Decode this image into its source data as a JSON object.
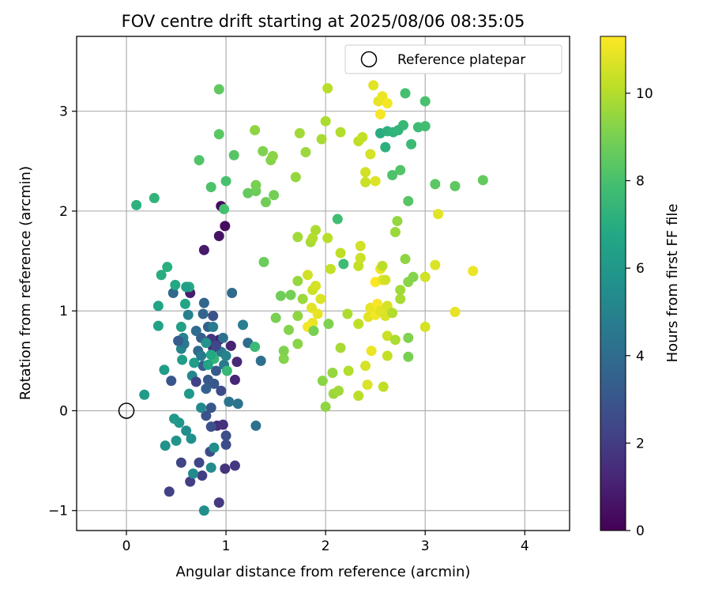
{
  "chart_data": {
    "type": "scatter",
    "title": "FOV centre drift starting at 2025/08/06 08:35:05",
    "xlabel": "Angular distance from reference (arcmin)",
    "ylabel": "Rotation from reference (arcmin)",
    "xlim": [
      -0.5,
      4.45
    ],
    "ylim": [
      -1.2,
      3.75
    ],
    "xticks": [
      0,
      1,
      2,
      3,
      4
    ],
    "yticks": [
      -1,
      0,
      1,
      2,
      3
    ],
    "grid": true,
    "legend": {
      "position": "top-right",
      "entries": [
        "Reference platepar"
      ]
    },
    "reference_point": {
      "x": 0,
      "y": 0,
      "label": "Reference platepar"
    },
    "colorbar": {
      "label": "Hours from first FF file",
      "colormap": "viridis",
      "range": [
        0,
        11.3
      ],
      "ticks": [
        0,
        2,
        4,
        6,
        8,
        10
      ]
    },
    "points": [
      {
        "x": 0.95,
        "y": 2.05,
        "h": 0.3
      },
      {
        "x": 0.99,
        "y": 1.85,
        "h": 0.4
      },
      {
        "x": 0.93,
        "y": 1.75,
        "h": 0.6
      },
      {
        "x": 0.78,
        "y": 1.61,
        "h": 0.8
      },
      {
        "x": 0.64,
        "y": 1.18,
        "h": 0.9
      },
      {
        "x": 0.93,
        "y": 0.71,
        "h": 1.0
      },
      {
        "x": 1.05,
        "y": 0.65,
        "h": 1.1
      },
      {
        "x": 1.09,
        "y": 0.31,
        "h": 1.2
      },
      {
        "x": 1.11,
        "y": 0.49,
        "h": 1.3
      },
      {
        "x": 0.87,
        "y": 0.63,
        "h": 1.4
      },
      {
        "x": 0.91,
        "y": -0.15,
        "h": 1.5
      },
      {
        "x": 0.97,
        "y": -0.14,
        "h": 1.6
      },
      {
        "x": 0.99,
        "y": -0.58,
        "h": 1.7
      },
      {
        "x": 1.09,
        "y": -0.55,
        "h": 1.8
      },
      {
        "x": 0.93,
        "y": -0.92,
        "h": 1.9
      },
      {
        "x": 0.76,
        "y": -0.65,
        "h": 2.0
      },
      {
        "x": 0.64,
        "y": -0.71,
        "h": 2.1
      },
      {
        "x": 0.43,
        "y": -0.81,
        "h": 2.2
      },
      {
        "x": 0.55,
        "y": -0.52,
        "h": 2.3
      },
      {
        "x": 0.73,
        "y": -0.52,
        "h": 2.4
      },
      {
        "x": 0.84,
        "y": -0.41,
        "h": 2.5
      },
      {
        "x": 1.0,
        "y": -0.34,
        "h": 2.6
      },
      {
        "x": 1.0,
        "y": -0.25,
        "h": 2.7
      },
      {
        "x": 0.85,
        "y": -0.16,
        "h": 2.8
      },
      {
        "x": 0.8,
        "y": -0.05,
        "h": 2.9
      },
      {
        "x": 0.85,
        "y": 0.03,
        "h": 3.0
      },
      {
        "x": 0.88,
        "y": 0.27,
        "h": 3.1
      },
      {
        "x": 0.82,
        "y": 0.31,
        "h": 3.2
      },
      {
        "x": 0.77,
        "y": 0.45,
        "h": 3.3
      },
      {
        "x": 0.75,
        "y": 0.73,
        "h": 3.4
      },
      {
        "x": 0.82,
        "y": 0.84,
        "h": 3.5
      },
      {
        "x": 0.77,
        "y": 0.97,
        "h": 3.6
      },
      {
        "x": 0.78,
        "y": 1.08,
        "h": 3.7
      },
      {
        "x": 0.47,
        "y": 1.18,
        "h": 3.8
      },
      {
        "x": 1.06,
        "y": 1.18,
        "h": 3.9
      },
      {
        "x": 1.22,
        "y": 0.68,
        "h": 4.0
      },
      {
        "x": 1.35,
        "y": 0.5,
        "h": 4.1
      },
      {
        "x": 1.3,
        "y": -0.15,
        "h": 4.2
      },
      {
        "x": 1.12,
        "y": 0.07,
        "h": 4.3
      },
      {
        "x": 1.03,
        "y": 0.09,
        "h": 4.4
      },
      {
        "x": 0.98,
        "y": 0.46,
        "h": 4.5
      },
      {
        "x": 0.95,
        "y": 0.59,
        "h": 4.6
      },
      {
        "x": 0.87,
        "y": 0.84,
        "h": 4.7
      },
      {
        "x": 1.17,
        "y": 0.86,
        "h": 4.8
      },
      {
        "x": 0.62,
        "y": 0.96,
        "h": 4.9
      },
      {
        "x": 0.57,
        "y": 0.73,
        "h": 5.0
      },
      {
        "x": 0.55,
        "y": 0.62,
        "h": 5.1
      },
      {
        "x": 0.66,
        "y": 0.35,
        "h": 5.2
      },
      {
        "x": 0.75,
        "y": 0.03,
        "h": 5.3
      },
      {
        "x": 0.67,
        "y": -0.63,
        "h": 5.4
      },
      {
        "x": 0.88,
        "y": -0.37,
        "h": 5.5
      },
      {
        "x": 0.65,
        "y": -0.28,
        "h": 5.6
      },
      {
        "x": 0.39,
        "y": -0.35,
        "h": 5.7
      },
      {
        "x": 0.5,
        "y": -0.3,
        "h": 5.8
      },
      {
        "x": 0.53,
        "y": -0.12,
        "h": 5.9
      },
      {
        "x": 0.48,
        "y": -0.08,
        "h": 6.0
      },
      {
        "x": 0.18,
        "y": 0.16,
        "h": 6.1
      },
      {
        "x": 0.38,
        "y": 0.41,
        "h": 6.2
      },
      {
        "x": 0.56,
        "y": 0.51,
        "h": 6.3
      },
      {
        "x": 0.55,
        "y": 0.84,
        "h": 6.4
      },
      {
        "x": 0.32,
        "y": 0.85,
        "h": 6.5
      },
      {
        "x": 0.32,
        "y": 1.05,
        "h": 6.6
      },
      {
        "x": 0.59,
        "y": 1.07,
        "h": 6.7
      },
      {
        "x": 0.49,
        "y": 1.26,
        "h": 6.8
      },
      {
        "x": 0.63,
        "y": 1.24,
        "h": 6.9
      },
      {
        "x": 0.35,
        "y": 1.36,
        "h": 7.0
      },
      {
        "x": 0.41,
        "y": 1.44,
        "h": 7.1
      },
      {
        "x": 0.1,
        "y": 2.06,
        "h": 7.2
      },
      {
        "x": 0.28,
        "y": 2.13,
        "h": 7.3
      },
      {
        "x": 0.88,
        "y": 0.52,
        "h": 7.4
      },
      {
        "x": 1.01,
        "y": 0.4,
        "h": 7.5
      },
      {
        "x": 1.29,
        "y": 0.64,
        "h": 7.6
      },
      {
        "x": 2.18,
        "y": 1.47,
        "h": 7.7
      },
      {
        "x": 2.12,
        "y": 1.92,
        "h": 7.8
      },
      {
        "x": 0.98,
        "y": 2.02,
        "h": 7.9
      },
      {
        "x": 1.0,
        "y": 2.3,
        "h": 8.0
      },
      {
        "x": 0.85,
        "y": 2.24,
        "h": 8.1
      },
      {
        "x": 0.73,
        "y": 2.51,
        "h": 8.2
      },
      {
        "x": 1.08,
        "y": 2.56,
        "h": 8.3
      },
      {
        "x": 0.93,
        "y": 2.77,
        "h": 8.4
      },
      {
        "x": 0.93,
        "y": 3.22,
        "h": 8.5
      },
      {
        "x": 1.22,
        "y": 2.18,
        "h": 8.6
      },
      {
        "x": 1.3,
        "y": 2.2,
        "h": 8.7
      },
      {
        "x": 1.4,
        "y": 2.09,
        "h": 8.8
      },
      {
        "x": 1.48,
        "y": 2.16,
        "h": 8.9
      },
      {
        "x": 1.3,
        "y": 2.26,
        "h": 9.0
      },
      {
        "x": 1.37,
        "y": 2.6,
        "h": 9.1
      },
      {
        "x": 1.45,
        "y": 2.51,
        "h": 9.2
      },
      {
        "x": 1.47,
        "y": 2.55,
        "h": 9.3
      },
      {
        "x": 1.29,
        "y": 2.81,
        "h": 9.4
      },
      {
        "x": 1.7,
        "y": 2.34,
        "h": 9.5
      },
      {
        "x": 1.8,
        "y": 2.59,
        "h": 9.6
      },
      {
        "x": 1.74,
        "y": 2.78,
        "h": 9.7
      },
      {
        "x": 1.96,
        "y": 2.72,
        "h": 9.8
      },
      {
        "x": 2.0,
        "y": 2.9,
        "h": 9.9
      },
      {
        "x": 2.15,
        "y": 2.79,
        "h": 10.0
      },
      {
        "x": 2.02,
        "y": 3.23,
        "h": 10.1
      },
      {
        "x": 2.33,
        "y": 2.7,
        "h": 10.2
      },
      {
        "x": 2.37,
        "y": 2.74,
        "h": 10.3
      },
      {
        "x": 2.4,
        "y": 2.29,
        "h": 10.4
      },
      {
        "x": 2.4,
        "y": 2.39,
        "h": 10.5
      },
      {
        "x": 2.45,
        "y": 2.57,
        "h": 10.6
      },
      {
        "x": 2.5,
        "y": 2.3,
        "h": 10.7
      },
      {
        "x": 2.48,
        "y": 3.26,
        "h": 10.8
      },
      {
        "x": 2.53,
        "y": 3.1,
        "h": 10.9
      },
      {
        "x": 2.57,
        "y": 3.15,
        "h": 11.0
      },
      {
        "x": 2.62,
        "y": 3.08,
        "h": 11.1
      },
      {
        "x": 2.55,
        "y": 2.97,
        "h": 11.2
      },
      {
        "x": 2.55,
        "y": 2.78,
        "h": 7.0
      },
      {
        "x": 2.6,
        "y": 2.64,
        "h": 7.1
      },
      {
        "x": 2.62,
        "y": 2.8,
        "h": 7.2
      },
      {
        "x": 2.68,
        "y": 2.79,
        "h": 7.3
      },
      {
        "x": 2.73,
        "y": 2.81,
        "h": 7.4
      },
      {
        "x": 2.78,
        "y": 2.86,
        "h": 7.5
      },
      {
        "x": 2.86,
        "y": 2.67,
        "h": 7.6
      },
      {
        "x": 2.93,
        "y": 2.84,
        "h": 7.7
      },
      {
        "x": 3.0,
        "y": 2.85,
        "h": 7.8
      },
      {
        "x": 2.8,
        "y": 3.18,
        "h": 7.9
      },
      {
        "x": 3.0,
        "y": 3.1,
        "h": 8.0
      },
      {
        "x": 2.67,
        "y": 2.36,
        "h": 8.1
      },
      {
        "x": 2.75,
        "y": 2.41,
        "h": 8.2
      },
      {
        "x": 2.83,
        "y": 2.1,
        "h": 8.3
      },
      {
        "x": 3.1,
        "y": 2.27,
        "h": 8.4
      },
      {
        "x": 3.3,
        "y": 2.25,
        "h": 8.5
      },
      {
        "x": 3.58,
        "y": 2.31,
        "h": 8.6
      },
      {
        "x": 1.38,
        "y": 1.49,
        "h": 8.7
      },
      {
        "x": 1.55,
        "y": 1.15,
        "h": 8.8
      },
      {
        "x": 1.65,
        "y": 1.16,
        "h": 8.9
      },
      {
        "x": 1.5,
        "y": 0.93,
        "h": 9.0
      },
      {
        "x": 1.58,
        "y": 0.6,
        "h": 9.1
      },
      {
        "x": 1.63,
        "y": 0.81,
        "h": 9.2
      },
      {
        "x": 1.72,
        "y": 0.67,
        "h": 9.3
      },
      {
        "x": 1.72,
        "y": 0.95,
        "h": 9.4
      },
      {
        "x": 1.72,
        "y": 1.3,
        "h": 9.5
      },
      {
        "x": 1.77,
        "y": 1.12,
        "h": 9.6
      },
      {
        "x": 1.72,
        "y": 1.74,
        "h": 9.7
      },
      {
        "x": 1.85,
        "y": 1.69,
        "h": 9.8
      },
      {
        "x": 1.9,
        "y": 1.81,
        "h": 9.9
      },
      {
        "x": 1.87,
        "y": 1.73,
        "h": 10.0
      },
      {
        "x": 2.02,
        "y": 1.73,
        "h": 10.1
      },
      {
        "x": 2.15,
        "y": 1.58,
        "h": 10.2
      },
      {
        "x": 2.05,
        "y": 1.42,
        "h": 10.3
      },
      {
        "x": 1.87,
        "y": 1.21,
        "h": 10.4
      },
      {
        "x": 1.82,
        "y": 1.36,
        "h": 10.5
      },
      {
        "x": 1.9,
        "y": 1.25,
        "h": 10.6
      },
      {
        "x": 1.95,
        "y": 1.12,
        "h": 10.7
      },
      {
        "x": 1.86,
        "y": 1.03,
        "h": 10.8
      },
      {
        "x": 1.92,
        "y": 0.97,
        "h": 10.9
      },
      {
        "x": 1.87,
        "y": 0.88,
        "h": 11.0
      },
      {
        "x": 1.82,
        "y": 0.84,
        "h": 11.1
      },
      {
        "x": 1.88,
        "y": 0.8,
        "h": 9.0
      },
      {
        "x": 2.03,
        "y": 0.87,
        "h": 9.1
      },
      {
        "x": 1.58,
        "y": 0.52,
        "h": 9.2
      },
      {
        "x": 1.97,
        "y": 0.3,
        "h": 9.3
      },
      {
        "x": 2.0,
        "y": 0.04,
        "h": 9.4
      },
      {
        "x": 2.07,
        "y": 0.38,
        "h": 9.5
      },
      {
        "x": 2.08,
        "y": 0.17,
        "h": 9.6
      },
      {
        "x": 2.13,
        "y": 0.2,
        "h": 9.7
      },
      {
        "x": 2.15,
        "y": 0.63,
        "h": 9.8
      },
      {
        "x": 2.22,
        "y": 0.97,
        "h": 9.9
      },
      {
        "x": 2.23,
        "y": 0.4,
        "h": 10.0
      },
      {
        "x": 2.33,
        "y": 0.15,
        "h": 10.1
      },
      {
        "x": 2.33,
        "y": 0.87,
        "h": 10.2
      },
      {
        "x": 2.33,
        "y": 1.45,
        "h": 10.3
      },
      {
        "x": 2.35,
        "y": 1.53,
        "h": 10.4
      },
      {
        "x": 2.35,
        "y": 1.65,
        "h": 10.5
      },
      {
        "x": 2.4,
        "y": 0.45,
        "h": 10.6
      },
      {
        "x": 2.42,
        "y": 0.26,
        "h": 10.7
      },
      {
        "x": 2.43,
        "y": 0.94,
        "h": 10.8
      },
      {
        "x": 2.45,
        "y": 1.03,
        "h": 10.9
      },
      {
        "x": 2.46,
        "y": 0.6,
        "h": 11.0
      },
      {
        "x": 2.5,
        "y": 0.96,
        "h": 11.1
      },
      {
        "x": 2.52,
        "y": 1.07,
        "h": 11.2
      },
      {
        "x": 2.5,
        "y": 1.29,
        "h": 11.3
      },
      {
        "x": 2.55,
        "y": 1.42,
        "h": 11.0
      },
      {
        "x": 2.57,
        "y": 1.31,
        "h": 10.9
      },
      {
        "x": 2.55,
        "y": 1.0,
        "h": 10.8
      },
      {
        "x": 2.6,
        "y": 0.95,
        "h": 10.7
      },
      {
        "x": 2.62,
        "y": 1.05,
        "h": 10.6
      },
      {
        "x": 2.6,
        "y": 1.31,
        "h": 10.5
      },
      {
        "x": 2.62,
        "y": 0.75,
        "h": 10.4
      },
      {
        "x": 2.62,
        "y": 0.55,
        "h": 10.3
      },
      {
        "x": 2.58,
        "y": 0.24,
        "h": 10.2
      },
      {
        "x": 2.57,
        "y": 1.45,
        "h": 10.1
      },
      {
        "x": 2.67,
        "y": 0.98,
        "h": 10.0
      },
      {
        "x": 2.7,
        "y": 0.71,
        "h": 9.9
      },
      {
        "x": 2.75,
        "y": 1.12,
        "h": 9.8
      },
      {
        "x": 2.75,
        "y": 1.21,
        "h": 9.7
      },
      {
        "x": 2.7,
        "y": 1.79,
        "h": 9.6
      },
      {
        "x": 2.72,
        "y": 1.9,
        "h": 9.5
      },
      {
        "x": 2.8,
        "y": 1.52,
        "h": 9.4
      },
      {
        "x": 2.83,
        "y": 1.29,
        "h": 9.3
      },
      {
        "x": 2.88,
        "y": 1.34,
        "h": 9.2
      },
      {
        "x": 2.83,
        "y": 0.73,
        "h": 9.1
      },
      {
        "x": 2.83,
        "y": 0.54,
        "h": 9.0
      },
      {
        "x": 3.0,
        "y": 1.34,
        "h": 10.5
      },
      {
        "x": 3.0,
        "y": 0.84,
        "h": 10.6
      },
      {
        "x": 3.1,
        "y": 1.46,
        "h": 10.7
      },
      {
        "x": 3.13,
        "y": 1.97,
        "h": 10.8
      },
      {
        "x": 3.3,
        "y": 0.99,
        "h": 10.9
      },
      {
        "x": 3.48,
        "y": 1.4,
        "h": 11.0
      },
      {
        "x": 0.6,
        "y": -0.2,
        "h": 5.5
      },
      {
        "x": 0.58,
        "y": 0.67,
        "h": 4.5
      },
      {
        "x": 0.7,
        "y": 0.8,
        "h": 4.0
      },
      {
        "x": 0.72,
        "y": 0.6,
        "h": 3.8
      },
      {
        "x": 0.68,
        "y": 0.48,
        "h": 6.2
      },
      {
        "x": 0.85,
        "y": 0.56,
        "h": 6.8
      },
      {
        "x": 0.9,
        "y": 0.4,
        "h": 3.2
      },
      {
        "x": 0.95,
        "y": 0.2,
        "h": 2.6
      },
      {
        "x": 0.8,
        "y": 0.22,
        "h": 3.5
      },
      {
        "x": 0.63,
        "y": 0.17,
        "h": 6.0
      },
      {
        "x": 0.85,
        "y": 0.72,
        "h": 1.8
      },
      {
        "x": 0.97,
        "y": 0.73,
        "h": 4.2
      },
      {
        "x": 0.9,
        "y": 0.65,
        "h": 2.4
      },
      {
        "x": 1.0,
        "y": 0.55,
        "h": 5.0
      },
      {
        "x": 0.45,
        "y": 0.3,
        "h": 3.0
      },
      {
        "x": 0.52,
        "y": 0.7,
        "h": 3.3
      },
      {
        "x": 0.8,
        "y": 0.68,
        "h": 5.8
      },
      {
        "x": 0.7,
        "y": 0.29,
        "h": 2.2
      },
      {
        "x": 0.82,
        "y": 0.46,
        "h": 6.6
      },
      {
        "x": 0.75,
        "y": 0.55,
        "h": 4.6
      },
      {
        "x": 0.85,
        "y": -0.57,
        "h": 5.4
      },
      {
        "x": 0.78,
        "y": -1.0,
        "h": 5.6
      },
      {
        "x": 0.87,
        "y": 0.95,
        "h": 2.8
      },
      {
        "x": 0.6,
        "y": 1.24,
        "h": 6.4
      }
    ]
  }
}
